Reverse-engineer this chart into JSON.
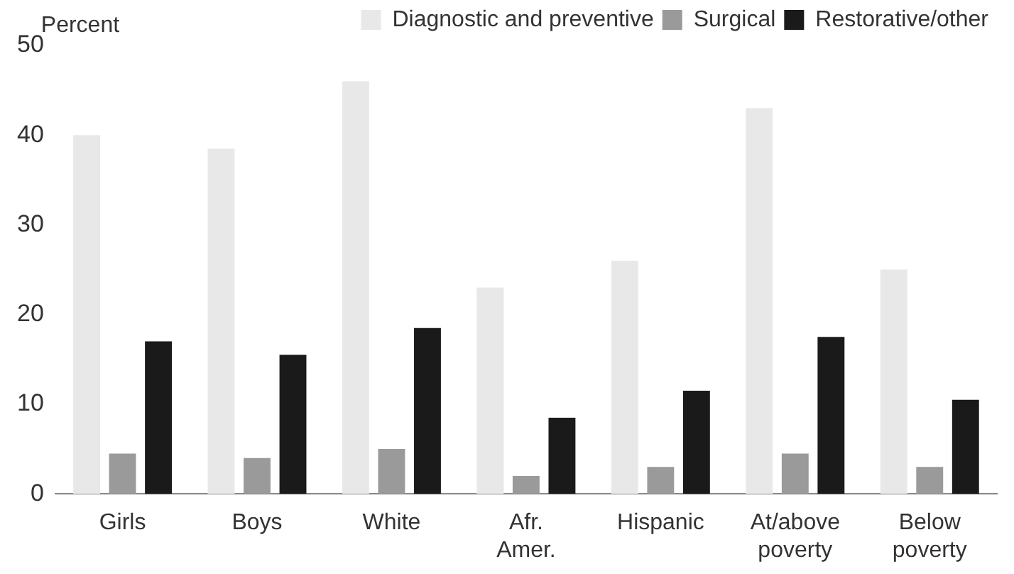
{
  "chart_data": {
    "type": "bar",
    "ylabel": "Percent",
    "categories": [
      "Girls",
      "Boys",
      "White",
      "Afr. Amer.",
      "Hispanic",
      "At/above poverty",
      "Below poverty"
    ],
    "series": [
      {
        "name": "Diagnostic and preventive",
        "color": "#e8e8e8",
        "values": [
          40,
          38.5,
          46,
          23,
          26,
          43,
          25
        ]
      },
      {
        "name": "Surgical",
        "color": "#9a9a9a",
        "values": [
          4.5,
          4,
          5,
          2,
          3,
          4.5,
          3
        ]
      },
      {
        "name": "Restorative/other",
        "color": "#1a1a1a",
        "values": [
          17,
          15.5,
          18.5,
          8.5,
          11.5,
          17.5,
          10.5
        ]
      }
    ],
    "ylim": [
      0,
      50
    ],
    "yticks": [
      0,
      10,
      20,
      30,
      40,
      50
    ],
    "grid": false,
    "legend": "top"
  }
}
